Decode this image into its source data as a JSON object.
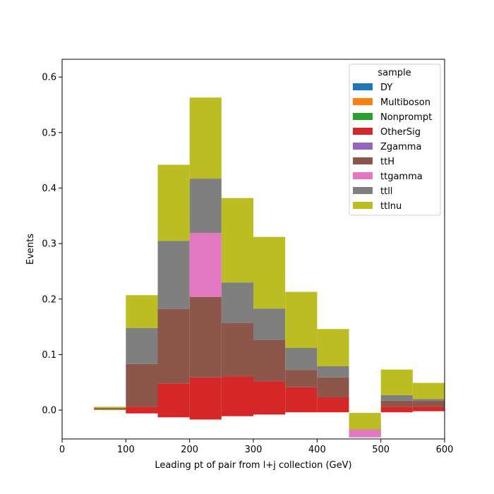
{
  "chart_data": {
    "type": "bar",
    "stacked": true,
    "histogram": true,
    "title": "",
    "xlabel": "Leading pt of pair from l+j collection (GeV)",
    "ylabel": "Events",
    "xlim": [
      0,
      600
    ],
    "ylim": [
      -0.052,
      0.632
    ],
    "grid": false,
    "legend_placement": "top-right",
    "legend_title": "sample",
    "bin_edges": [
      50,
      100,
      150,
      200,
      250,
      300,
      350,
      400,
      450,
      500,
      550,
      600
    ],
    "x_ticks": [
      0,
      100,
      200,
      300,
      400,
      500,
      600
    ],
    "x_tick_labels": [
      "0",
      "100",
      "200",
      "300",
      "400",
      "500",
      "600"
    ],
    "y_ticks": [
      0.0,
      0.1,
      0.2,
      0.3,
      0.4,
      0.5,
      0.6
    ],
    "y_tick_labels": [
      "0.0",
      "0.1",
      "0.2",
      "0.3",
      "0.4",
      "0.5",
      "0.6"
    ],
    "series": [
      {
        "name": "DY",
        "color": "#1f77b4",
        "values": [
          0,
          0,
          0,
          0,
          0,
          0,
          0,
          0,
          0,
          0,
          0
        ]
      },
      {
        "name": "Multiboson",
        "color": "#ff7f0e",
        "values": [
          0.001,
          0,
          0,
          0,
          0,
          0,
          0,
          0,
          0,
          0,
          0
        ]
      },
      {
        "name": "Nonprompt",
        "color": "#2ca02c",
        "values": [
          0.001,
          0,
          0,
          0,
          0,
          0,
          0,
          0,
          0,
          0,
          0
        ]
      },
      {
        "name": "OtherSig",
        "color": "#d62728",
        "values": [
          0.001,
          0.012,
          0.061,
          0.076,
          0.072,
          0.06,
          0.045,
          0.027,
          0,
          0.01,
          0.008
        ]
      },
      {
        "name": "Zgamma",
        "color": "#9467bd",
        "values": [
          0,
          0,
          0,
          0,
          0,
          0,
          0,
          0,
          0,
          0,
          0
        ]
      },
      {
        "name": "ttH",
        "color": "#8c564b",
        "values": [
          0.001,
          0.077,
          0.134,
          0.145,
          0.096,
          0.074,
          0.031,
          0.036,
          -0.016,
          0.011,
          0.01
        ]
      },
      {
        "name": "ttgamma",
        "color": "#e377c2",
        "values": [
          0,
          0,
          0,
          0.115,
          0,
          0,
          0,
          0,
          0.03,
          0,
          0
        ]
      },
      {
        "name": "ttll",
        "color": "#7f7f7f",
        "values": [
          0,
          0.065,
          0.123,
          0.098,
          0.073,
          0.057,
          0.04,
          0.02,
          -0.016,
          0.01,
          0.004
        ]
      },
      {
        "name": "ttlnu",
        "color": "#bcbd22",
        "values": [
          0.002,
          0.059,
          0.137,
          0.146,
          0.152,
          0.129,
          0.101,
          0.067,
          0.03,
          0.046,
          0.029
        ]
      }
    ],
    "negative_offsets": [
      0,
      -0.006,
      -0.013,
      -0.017,
      -0.011,
      -0.008,
      -0.004,
      -0.004,
      -0.033,
      -0.004,
      -0.002
    ]
  }
}
